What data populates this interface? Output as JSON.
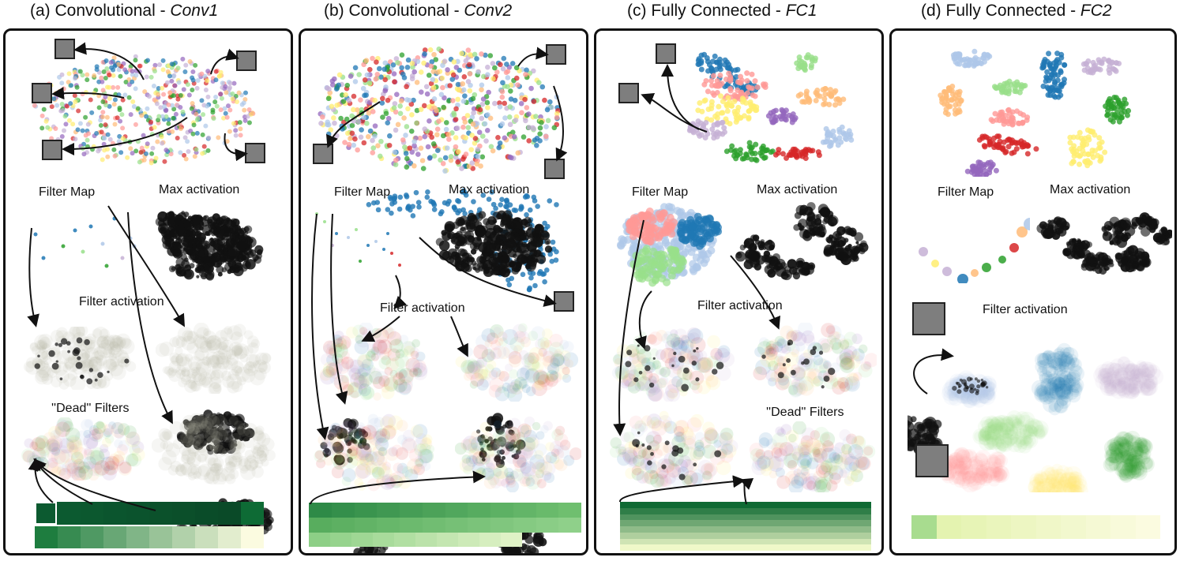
{
  "panels": [
    {
      "prefix": "(a) Convolutional - ",
      "layer": "Conv1",
      "labels": {
        "filter_map": "Filter Map",
        "max_activation": "Max activation",
        "filter_activation": "Filter activation",
        "dead_filters": "''Dead'' Filters"
      }
    },
    {
      "prefix": "(b) Convolutional - ",
      "layer": "Conv2",
      "labels": {
        "filter_map": "Filter Map",
        "max_activation": "Max activation",
        "filter_activation": "Filter activation"
      }
    },
    {
      "prefix": "(c) Fully Connected - ",
      "layer": "FC1",
      "labels": {
        "filter_map": "Filter Map",
        "max_activation": "Max activation",
        "filter_activation": "Filter activation",
        "dead_filters": "''Dead'' Filters"
      }
    },
    {
      "prefix": "(d) Fully Connected - ",
      "layer": "FC2",
      "labels": {
        "filter_map": "Filter Map",
        "max_activation": "Max activation",
        "filter_activation": "Filter activation"
      }
    }
  ],
  "palette": {
    "digit_colors": [
      "#1f77b4",
      "#aec7e8",
      "#ff9896",
      "#d62728",
      "#2ca02c",
      "#98df8a",
      "#9467bd",
      "#c5b0d5",
      "#ffbb78",
      "#ffed6f"
    ],
    "heatmap_dark": "#0a4d2a",
    "heatmap_light": "#fbfbe0"
  }
}
